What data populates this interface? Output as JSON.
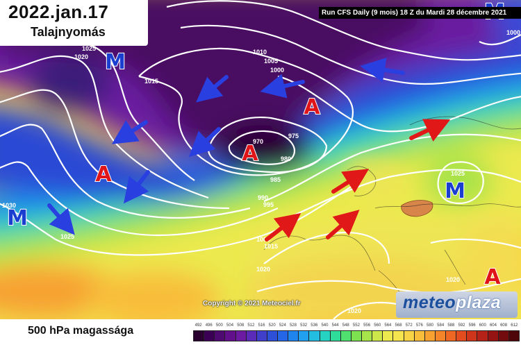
{
  "header": {
    "date": "2022.jan.17",
    "subtitle": "Talajnyomás",
    "run_label": "Run CFS Daily (9 mois) 18 Z du Mardi 28 décembre 2021"
  },
  "footer": {
    "layer_label": "500 hPa magassága",
    "copyright": "Copyright © 2021 Meteociel.fr",
    "brand_main": "meteo",
    "brand_accent": "plaza"
  },
  "legend": {
    "ticks": [
      "492",
      "496",
      "500",
      "504",
      "508",
      "512",
      "516",
      "520",
      "524",
      "528",
      "532",
      "536",
      "540",
      "544",
      "548",
      "552",
      "556",
      "560",
      "564",
      "568",
      "572",
      "576",
      "580",
      "584",
      "588",
      "592",
      "596",
      "600",
      "604",
      "608",
      "612"
    ],
    "colors": [
      "#2a0030",
      "#3b0055",
      "#4f0a72",
      "#620f8c",
      "#6d1aa3",
      "#5a2bb8",
      "#3f3fc9",
      "#2e4fd8",
      "#2466e6",
      "#1f84ee",
      "#20a0ee",
      "#22bde0",
      "#26d2c2",
      "#2fdc9a",
      "#4fe06f",
      "#7ee14f",
      "#a7e34a",
      "#cde64a",
      "#ebe94e",
      "#f6e44f",
      "#f8d345",
      "#f8bd3a",
      "#f7a130",
      "#f48528",
      "#ee6723",
      "#e24c1e",
      "#cf351a",
      "#b52217",
      "#951413",
      "#730c0f",
      "#4f060a"
    ]
  },
  "map": {
    "pressure_systems": [
      {
        "type": "low",
        "letter": "M",
        "color": "#1a3fd0"
      },
      {
        "type": "low",
        "letter": "M",
        "color": "#1a3fd0"
      },
      {
        "type": "low",
        "letter": "M",
        "color": "#1a3fd0"
      },
      {
        "type": "low",
        "letter": "M",
        "color": "#1a3fd0"
      },
      {
        "type": "high",
        "letter": "A",
        "color": "#e0151a"
      },
      {
        "type": "high",
        "letter": "A",
        "color": "#e0151a"
      },
      {
        "type": "high",
        "letter": "A",
        "color": "#e0151a"
      },
      {
        "type": "high",
        "letter": "A",
        "color": "#e0151a"
      }
    ],
    "isobar_labels": [
      "1025",
      "1020",
      "1015",
      "1010",
      "1005",
      "1000",
      "970",
      "975",
      "980",
      "985",
      "990",
      "995",
      "1030",
      "1025",
      "1000",
      "1015",
      "1020",
      "1025",
      "1020",
      "1020",
      "1000"
    ],
    "arrow_colors": {
      "cold": "#2a3fe0",
      "warm": "#e01818"
    }
  }
}
